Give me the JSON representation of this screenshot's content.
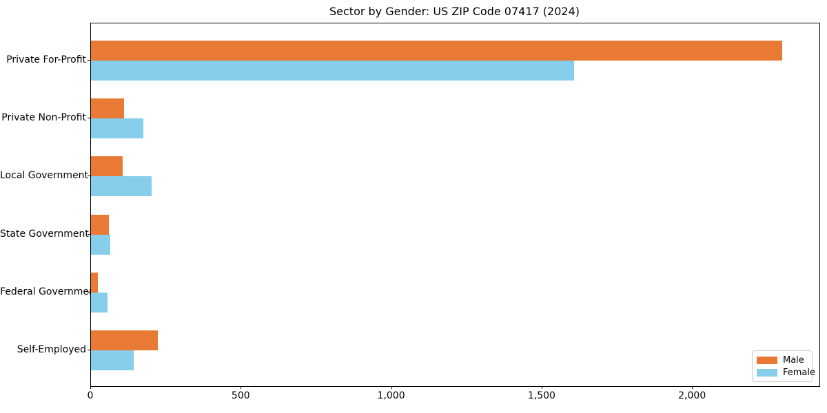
{
  "chart_data": {
    "type": "bar",
    "orientation": "horizontal",
    "title": "Sector by Gender: US ZIP Code 07417 (2024)",
    "categories": [
      "Private For-Profit",
      "Private Non-Profit",
      "Local Government",
      "State Government",
      "Federal Government",
      "Self-Employed"
    ],
    "series": [
      {
        "name": "Male",
        "color": "#E97A35",
        "values": [
          2298,
          110,
          106,
          60,
          22,
          223
        ]
      },
      {
        "name": "Female",
        "color": "#87CEEB",
        "values": [
          1605,
          173,
          201,
          65,
          55,
          141
        ]
      }
    ],
    "xlabel": "",
    "ylabel": "",
    "xlim": [
      0,
      2421
    ],
    "x_ticks": [
      {
        "value": 0,
        "label": "0"
      },
      {
        "value": 500,
        "label": "500"
      },
      {
        "value": 1000,
        "label": "1,000"
      },
      {
        "value": 1500,
        "label": "1,500"
      },
      {
        "value": 2000,
        "label": "2,000"
      }
    ],
    "grid": false,
    "legend_position": "lower right",
    "axis_color": "#000000",
    "background_color": "#ffffff"
  }
}
